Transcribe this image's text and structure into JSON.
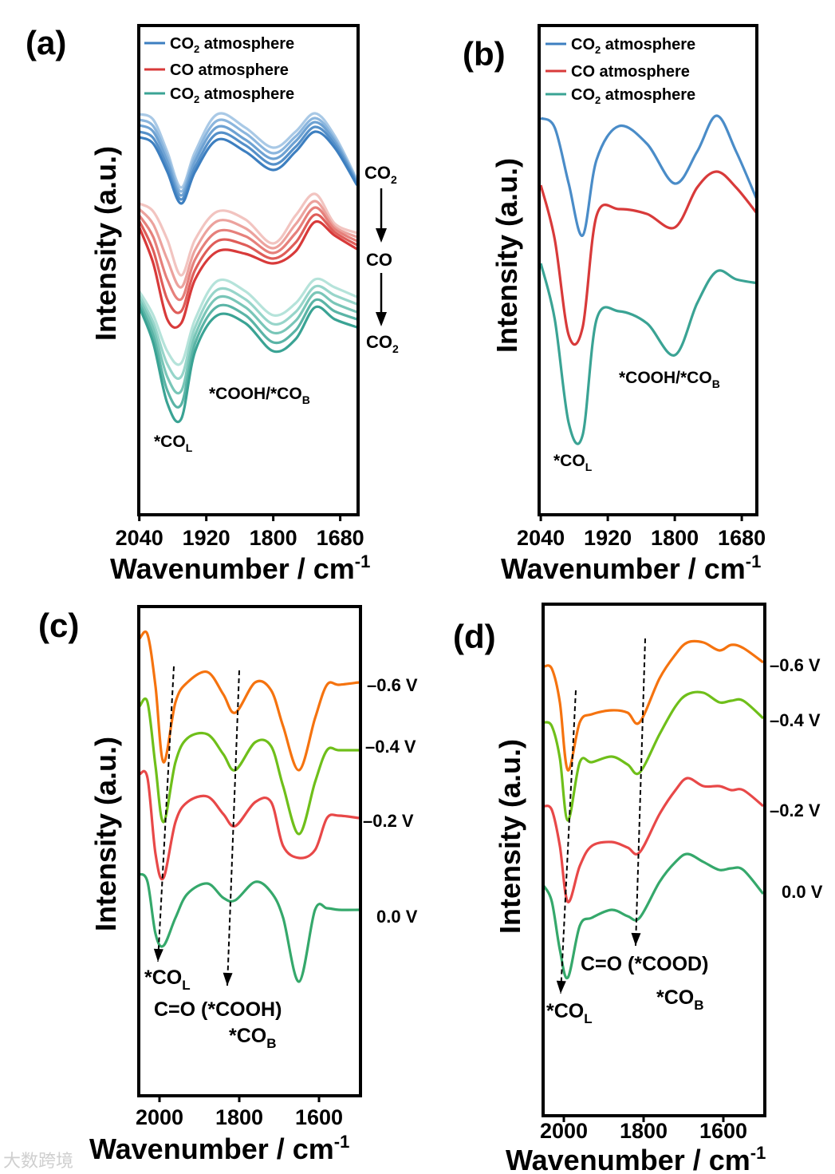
{
  "chart_data": [
    {
      "panel": "(a)",
      "type": "line",
      "xlabel": "Wavenumber / cm",
      "xlabel_sup": "-1",
      "ylabel": "Intensity (a.u.)",
      "xlim": [
        2041,
        1648
      ],
      "ylim": [
        0,
        613
      ],
      "xticks": [
        2040,
        1920,
        1800,
        1680
      ],
      "x": [
        2040,
        2015,
        1990,
        1965,
        1940,
        1900,
        1850,
        1800,
        1760,
        1725,
        1690,
        1650
      ],
      "legend": [
        {
          "main": "CO",
          "sub": "2",
          "rest": " atmosphere",
          "color": "#3d7fc0"
        },
        {
          "main": "CO",
          "sub": "",
          "rest": " atmosphere",
          "color": "#d83a3a"
        },
        {
          "main": "CO",
          "sub": "2",
          "rest": " atmosphere",
          "color": "#3aa394"
        }
      ],
      "series": [
        {
          "name": "CO2 atmosphere",
          "colors": [
            "#a9c9e6",
            "#8bb6de",
            "#6ea2d3",
            "#5590c9",
            "#3d7fc0"
          ],
          "curves": [
            [
              502,
              495,
              455,
              410,
              455,
              502,
              485,
              460,
              480,
              503,
              475,
              420
            ],
            [
              495,
              487,
              449,
              405,
              449,
              494,
              478,
              453,
              474,
              497,
              471,
              418
            ],
            [
              488,
              480,
              443,
              400,
              443,
              486,
              470,
              446,
              468,
              492,
              468,
              417
            ],
            [
              480,
              472,
              436,
              395,
              436,
              478,
              463,
              439,
              461,
              486,
              464,
              415
            ],
            [
              473,
              465,
              430,
              390,
              430,
              470,
              455,
              432,
              455,
              480,
              460,
              413
            ]
          ]
        },
        {
          "name": "CO atmosphere",
          "colors": [
            "#f2c4c0",
            "#eca29d",
            "#e6807b",
            "#df5d59",
            "#d83a3a"
          ],
          "curves": [
            [
              390,
              380,
              345,
              300,
              345,
              380,
              370,
              340,
              375,
              402,
              365,
              353
            ],
            [
              383,
              364,
              320,
              285,
              332,
              368,
              359,
              334,
              364,
              393,
              361,
              348
            ],
            [
              375,
              348,
              295,
              270,
              320,
              355,
              349,
              328,
              353,
              385,
              358,
              343
            ],
            [
              368,
              331,
              270,
              255,
              307,
              343,
              338,
              321,
              341,
              376,
              354,
              338
            ],
            [
              360,
              315,
              245,
              240,
              295,
              330,
              327,
              315,
              330,
              367,
              350,
              333
            ]
          ]
        },
        {
          "name": "CO2 atmosphere",
          "colors": [
            "#b5e3da",
            "#97d5ca",
            "#79c6b8",
            "#5ab4a6",
            "#3aa394"
          ],
          "curves": [
            [
              280,
              250,
              205,
              190,
              245,
              293,
              280,
              250,
              265,
              295,
              285,
              273
            ],
            [
              275,
              241,
              189,
              173,
              235,
              282,
              270,
              239,
              254,
              286,
              275,
              264
            ],
            [
              270,
              233,
              173,
              155,
              225,
              272,
              260,
              228,
              243,
              278,
              265,
              254
            ],
            [
              265,
              224,
              156,
              138,
              215,
              261,
              250,
              216,
              231,
              269,
              255,
              245
            ],
            [
              260,
              215,
              140,
              120,
              205,
              250,
              240,
              205,
              220,
              260,
              245,
              235
            ]
          ]
        }
      ],
      "annotations": {
        "col_main": "*CO",
        "col_sub": "L",
        "cooh_main": "*COOH/*CO",
        "cooh_sub": "B"
      },
      "sequence": [
        {
          "main": "CO",
          "sub": "2"
        },
        {
          "main": "CO",
          "sub": ""
        },
        {
          "main": "CO",
          "sub": "2"
        }
      ]
    },
    {
      "panel": "(b)",
      "type": "line",
      "xlabel": "Wavenumber / cm",
      "xlabel_sup": "-1",
      "ylabel": "Intensity (a.u.)",
      "xlim": [
        2043,
        1653
      ],
      "ylim": [
        0,
        613
      ],
      "xticks": [
        2040,
        1920,
        1800,
        1680
      ],
      "x": [
        2040,
        2015,
        1990,
        1965,
        1940,
        1900,
        1850,
        1800,
        1760,
        1725,
        1690,
        1650
      ],
      "legend": [
        {
          "main": "CO",
          "sub": "2",
          "rest": " atmosphere",
          "color": "#3d7fc0"
        },
        {
          "main": "CO",
          "sub": "",
          "rest": " atmosphere",
          "color": "#d83a3a"
        },
        {
          "main": "CO",
          "sub": "2",
          "rest": " atmosphere",
          "color": "#3aa394"
        }
      ],
      "series": [
        {
          "name": "CO2 atmosphere",
          "colors": [
            "#4a8cc8"
          ],
          "curves": [
            [
              497,
              485,
              415,
              350,
              445,
              487,
              465,
              415,
              455,
              500,
              455,
              390
            ]
          ]
        },
        {
          "name": "CO atmosphere",
          "colors": [
            "#d83a3a"
          ],
          "curves": [
            [
              413,
              345,
              225,
              235,
              375,
              383,
              377,
              360,
              410,
              430,
              410,
              375
            ]
          ]
        },
        {
          "name": "CO2 atmosphere",
          "colors": [
            "#3aa394"
          ],
          "curves": [
            [
              315,
              245,
              115,
              100,
              245,
              255,
              240,
              200,
              265,
              305,
              295,
              290
            ]
          ]
        }
      ],
      "annotations": {
        "col_main": "*CO",
        "col_sub": "L",
        "cooh_main": "*COOH/*CO",
        "cooh_sub": "B"
      }
    },
    {
      "panel": "(c)",
      "type": "line",
      "xlabel": "Wavenumber / cm",
      "xlabel_sup": "-1",
      "ylabel": "Intensity (a.u.)",
      "xlim": [
        2052,
        1496
      ],
      "ylim": [
        0,
        613
      ],
      "xticks": [
        2000,
        1800,
        1600
      ],
      "x": [
        2050,
        2030,
        2010,
        1990,
        1960,
        1930,
        1880,
        1840,
        1810,
        1760,
        1720,
        1690,
        1650,
        1610,
        1580,
        1550,
        1500
      ],
      "series": [
        {
          "name": "-0.6 V",
          "label": "–0.6 V",
          "colors": [
            "#f5730f"
          ],
          "curves": [
            [
              573,
              578,
              513,
              418,
              493,
              518,
              531,
              503,
              480,
              518,
              508,
              463,
              408,
              473,
              515,
              515,
              518
            ]
          ]
        },
        {
          "name": "-0.4 V",
          "label": "–0.4 V",
          "colors": [
            "#6fbf1a"
          ],
          "curves": [
            [
              488,
              493,
              413,
              343,
              418,
              448,
              453,
              428,
              408,
              443,
              438,
              388,
              328,
              393,
              433,
              433,
              433
            ]
          ]
        },
        {
          "name": "-0.2 V",
          "label": "–0.2 V",
          "colors": [
            "#e84848"
          ],
          "curves": [
            [
              403,
              398,
              303,
              273,
              343,
              368,
              375,
              353,
              338,
              368,
              368,
              313,
              298,
              308,
              348,
              351,
              348
            ]
          ]
        },
        {
          "name": "0.0 V",
          "label": "0.0 V",
          "colors": [
            "#35a86b"
          ],
          "curves": [
            [
              278,
              268,
              203,
              188,
              223,
              253,
              266,
              248,
              245,
              268,
              255,
              223,
              143,
              233,
              235,
              233,
              233
            ]
          ]
        }
      ],
      "arrows": [
        [
          1964,
          538,
          2004,
          168
        ],
        [
          1800,
          533,
          1830,
          138
        ]
      ],
      "annotations": {
        "col_main": "*CO",
        "col_sub": "L",
        "co_text": "C=O (*COOH)",
        "cob_main": "*CO",
        "cob_sub": "B"
      }
    },
    {
      "panel": "(d)",
      "type": "line",
      "xlabel": "Wavenumber / cm",
      "xlabel_sup": "-1",
      "ylabel": "Intensity (a.u.)",
      "xlim": [
        2052,
        1496
      ],
      "ylim": [
        0,
        641
      ],
      "xticks": [
        2000,
        1800,
        1600
      ],
      "x": [
        2050,
        2030,
        2010,
        1990,
        1960,
        1930,
        1880,
        1840,
        1810,
        1760,
        1720,
        1690,
        1650,
        1610,
        1580,
        1550,
        1500
      ],
      "series": [
        {
          "name": "-0.6 V",
          "label": "–0.6 V",
          "colors": [
            "#f5730f"
          ],
          "curves": [
            [
              563,
              560,
              518,
              433,
              493,
              503,
              508,
              505,
              493,
              548,
              578,
              593,
              593,
              583,
              590,
              586,
              568
            ]
          ]
        },
        {
          "name": "-0.4 V",
          "label": "–0.4 V",
          "colors": [
            "#6fbf1a"
          ],
          "curves": [
            [
              493,
              488,
              448,
              370,
              443,
              443,
              450,
              440,
              430,
              478,
              513,
              528,
              530,
              518,
              520,
              520,
              498
            ]
          ]
        },
        {
          "name": "-0.2 V",
          "label": "–0.2 V",
          "colors": [
            "#e84848"
          ],
          "curves": [
            [
              388,
              383,
              338,
              268,
              313,
              338,
              343,
              336,
              330,
              378,
              408,
              423,
              413,
              413,
              408,
              408,
              388
            ]
          ]
        },
        {
          "name": "0.0 V",
          "label": "0.0 V",
          "colors": [
            "#35a86b"
          ],
          "curves": [
            [
              288,
              268,
              208,
              173,
              238,
              248,
              258,
              250,
              248,
              293,
              318,
              328,
              318,
              308,
              310,
              308,
              278
            ]
          ]
        }
      ],
      "arrows": [
        [
          1970,
          533,
          2008,
          153
        ],
        [
          1796,
          598,
          1820,
          213
        ]
      ],
      "annotations": {
        "col_main": "*CO",
        "col_sub": "L",
        "co_text": "C=O (*COOD)",
        "cob_main": "*CO",
        "cob_sub": "B"
      }
    }
  ],
  "watermark": "大数跨境"
}
